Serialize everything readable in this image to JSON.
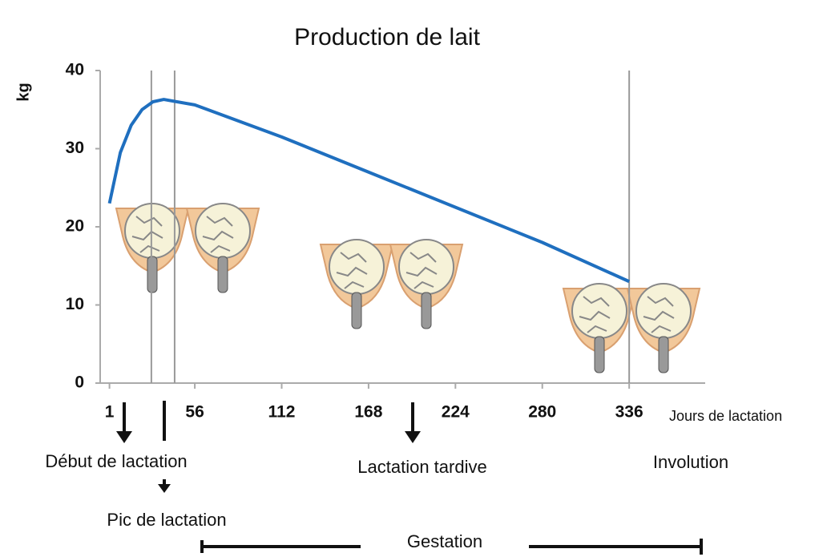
{
  "chart_data": {
    "type": "line",
    "title": "Production de lait",
    "y_label": "kg",
    "x_label": "Jours de lactation",
    "x": [
      1,
      8,
      15,
      22,
      29,
      36,
      56,
      112,
      168,
      224,
      280,
      336
    ],
    "values": [
      23,
      29.5,
      33,
      35,
      36,
      36.3,
      35.6,
      31.5,
      27,
      22.5,
      18,
      13
    ],
    "color": "#1f6fbf",
    "xlim": [
      -5,
      385
    ],
    "xticks": [
      1,
      56,
      112,
      168,
      224,
      280,
      336
    ],
    "ylim": [
      0,
      40
    ],
    "yticks": [
      0,
      10,
      20,
      30,
      40
    ],
    "vlines": [
      28,
      43,
      336
    ],
    "annotations": [
      "Début de lactation",
      "Pic de lactation",
      "Lactation tardive",
      "Involution",
      "Gestation"
    ]
  }
}
